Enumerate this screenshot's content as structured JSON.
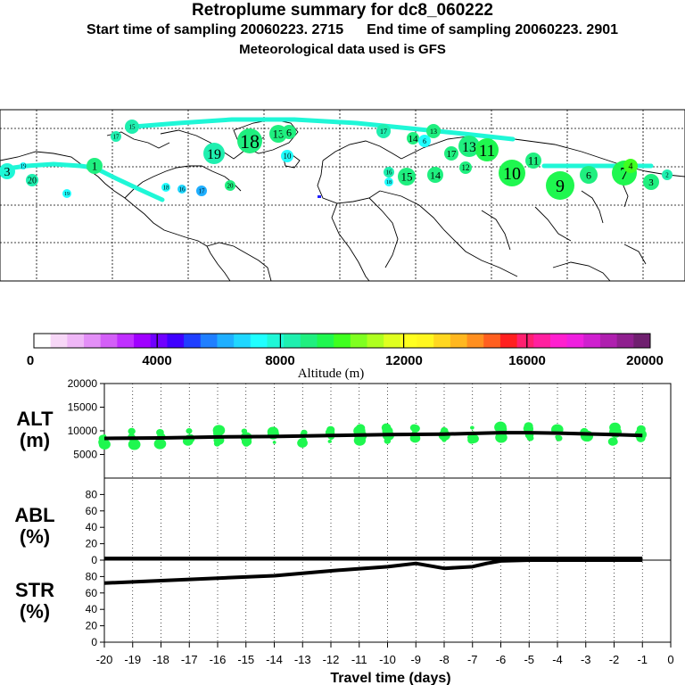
{
  "header": {
    "title": "Retroplume summary for dc8_060222",
    "start_label": "Start time of sampling 20060223.  2715",
    "end_label": "End time of sampling 20060223.  2901",
    "met_label": "Meteorological data used is GFS"
  },
  "colorbar": {
    "label": "Altitude (m)",
    "ticks": [
      "0",
      "4000",
      "8000",
      "12000",
      "16000",
      "20000"
    ],
    "colors": [
      "#ffffff",
      "#f7d7f7",
      "#efb7f7",
      "#e38ff7",
      "#d35ff7",
      "#c02fff",
      "#a000ff",
      "#7000ff",
      "#3f00ff",
      "#1f3fff",
      "#1f7fff",
      "#1fafff",
      "#1fd7ff",
      "#1fffff",
      "#1ff7d7",
      "#1fefaf",
      "#1fef7f",
      "#1ff74f",
      "#3fff1f",
      "#7fff1f",
      "#afff1f",
      "#dfff1f",
      "#ffff1f",
      "#fff71f",
      "#ffd71f",
      "#ffb71f",
      "#ff8f1f",
      "#ff5f1f",
      "#ff1f1f",
      "#ff1f6f",
      "#ff1f9f",
      "#ff1fcf",
      "#ef1fdf",
      "#cf1fcf",
      "#af1faf",
      "#8f1f8f",
      "#6f1f6f"
    ]
  },
  "map_labels": [
    {
      "text": "3",
      "c": "#1ff7d7"
    },
    {
      "text": "19",
      "c": "#1fffff"
    },
    {
      "text": "20",
      "c": "#1fefaf"
    },
    {
      "text": "1",
      "c": "#1fef7f"
    },
    {
      "text": "19",
      "c": "#1fffff"
    },
    {
      "text": "17",
      "c": "#1fefaf"
    },
    {
      "text": "15",
      "c": "#1fefaf"
    },
    {
      "text": "18",
      "c": "#1fffff"
    },
    {
      "text": "16",
      "c": "#1fd7ff"
    },
    {
      "text": "17",
      "c": "#1fafff"
    },
    {
      "text": "20",
      "c": "#1fef7f"
    },
    {
      "text": "19",
      "c": "#1fefaf"
    },
    {
      "text": "18",
      "c": "#1fef7f"
    },
    {
      "text": "13",
      "c": "#1fef7f"
    },
    {
      "text": "6",
      "c": "#1fef7f"
    },
    {
      "text": "10",
      "c": "#1fffff"
    },
    {
      "text": "17",
      "c": "#1fefaf"
    },
    {
      "text": "14",
      "c": "#1fef7f"
    },
    {
      "text": "6",
      "c": "#1fffff"
    },
    {
      "text": "13",
      "c": "#1fef7f"
    },
    {
      "text": "17",
      "c": "#1fef7f"
    },
    {
      "text": "13",
      "c": "#1fef7f"
    },
    {
      "text": "11",
      "c": "#1ff74f"
    },
    {
      "text": "12",
      "c": "#1fef7f"
    },
    {
      "text": "10",
      "c": "#1ff74f"
    },
    {
      "text": "11",
      "c": "#1fef7f"
    },
    {
      "text": "15",
      "c": "#1fef7f"
    },
    {
      "text": "14",
      "c": "#1fef7f"
    },
    {
      "text": "18",
      "c": "#1fffff"
    },
    {
      "text": "16",
      "c": "#1fefaf"
    },
    {
      "text": "9",
      "c": "#1ff74f"
    },
    {
      "text": "6",
      "c": "#1fef7f"
    },
    {
      "text": "7",
      "c": "#1ff74f"
    },
    {
      "text": "4",
      "c": "#3fff1f"
    },
    {
      "text": "3",
      "c": "#1fef7f"
    },
    {
      "text": "2",
      "c": "#1fefaf"
    }
  ],
  "chart_data": {
    "type": "scatter",
    "xlabel": "Travel time (days)",
    "x_ticks": [
      -20,
      -19,
      -18,
      -17,
      -16,
      -15,
      -14,
      -13,
      -12,
      -11,
      -10,
      -9,
      -8,
      -7,
      -6,
      -5,
      -4,
      -3,
      -2,
      -1,
      0
    ],
    "xlim": [
      -20,
      0
    ],
    "alt": {
      "label": "ALT",
      "unit": "(m)",
      "ylim": [
        0,
        20000
      ],
      "y_ticks": [
        5000,
        10000,
        15000,
        20000
      ],
      "median": {
        "x": [
          -20,
          -18,
          -16,
          -14,
          -12,
          -10,
          -8,
          -6,
          -5,
          -4,
          -2,
          -1
        ],
        "y": [
          8400,
          8500,
          8700,
          8800,
          9000,
          9200,
          9300,
          9600,
          9600,
          9500,
          9200,
          9000
        ]
      }
    },
    "abl": {
      "label": "ABL",
      "unit": "(%)",
      "ylim": [
        0,
        100
      ],
      "y_ticks": [
        0,
        20,
        40,
        60,
        80
      ],
      "line": {
        "x": [
          -20,
          -1
        ],
        "y": [
          2,
          2
        ]
      }
    },
    "str": {
      "label": "STR",
      "unit": "(%)",
      "ylim": [
        0,
        100
      ],
      "y_ticks": [
        0,
        20,
        40,
        60,
        80
      ],
      "line": {
        "x": [
          -20,
          -18,
          -16,
          -14,
          -12,
          -10,
          -9,
          -8.5,
          -8,
          -7,
          -6.5,
          -6,
          -5,
          -3,
          -1
        ],
        "y": [
          72,
          75,
          78,
          81,
          87,
          92,
          96,
          93,
          90,
          92,
          96,
          99,
          100,
          100,
          100
        ]
      }
    }
  }
}
